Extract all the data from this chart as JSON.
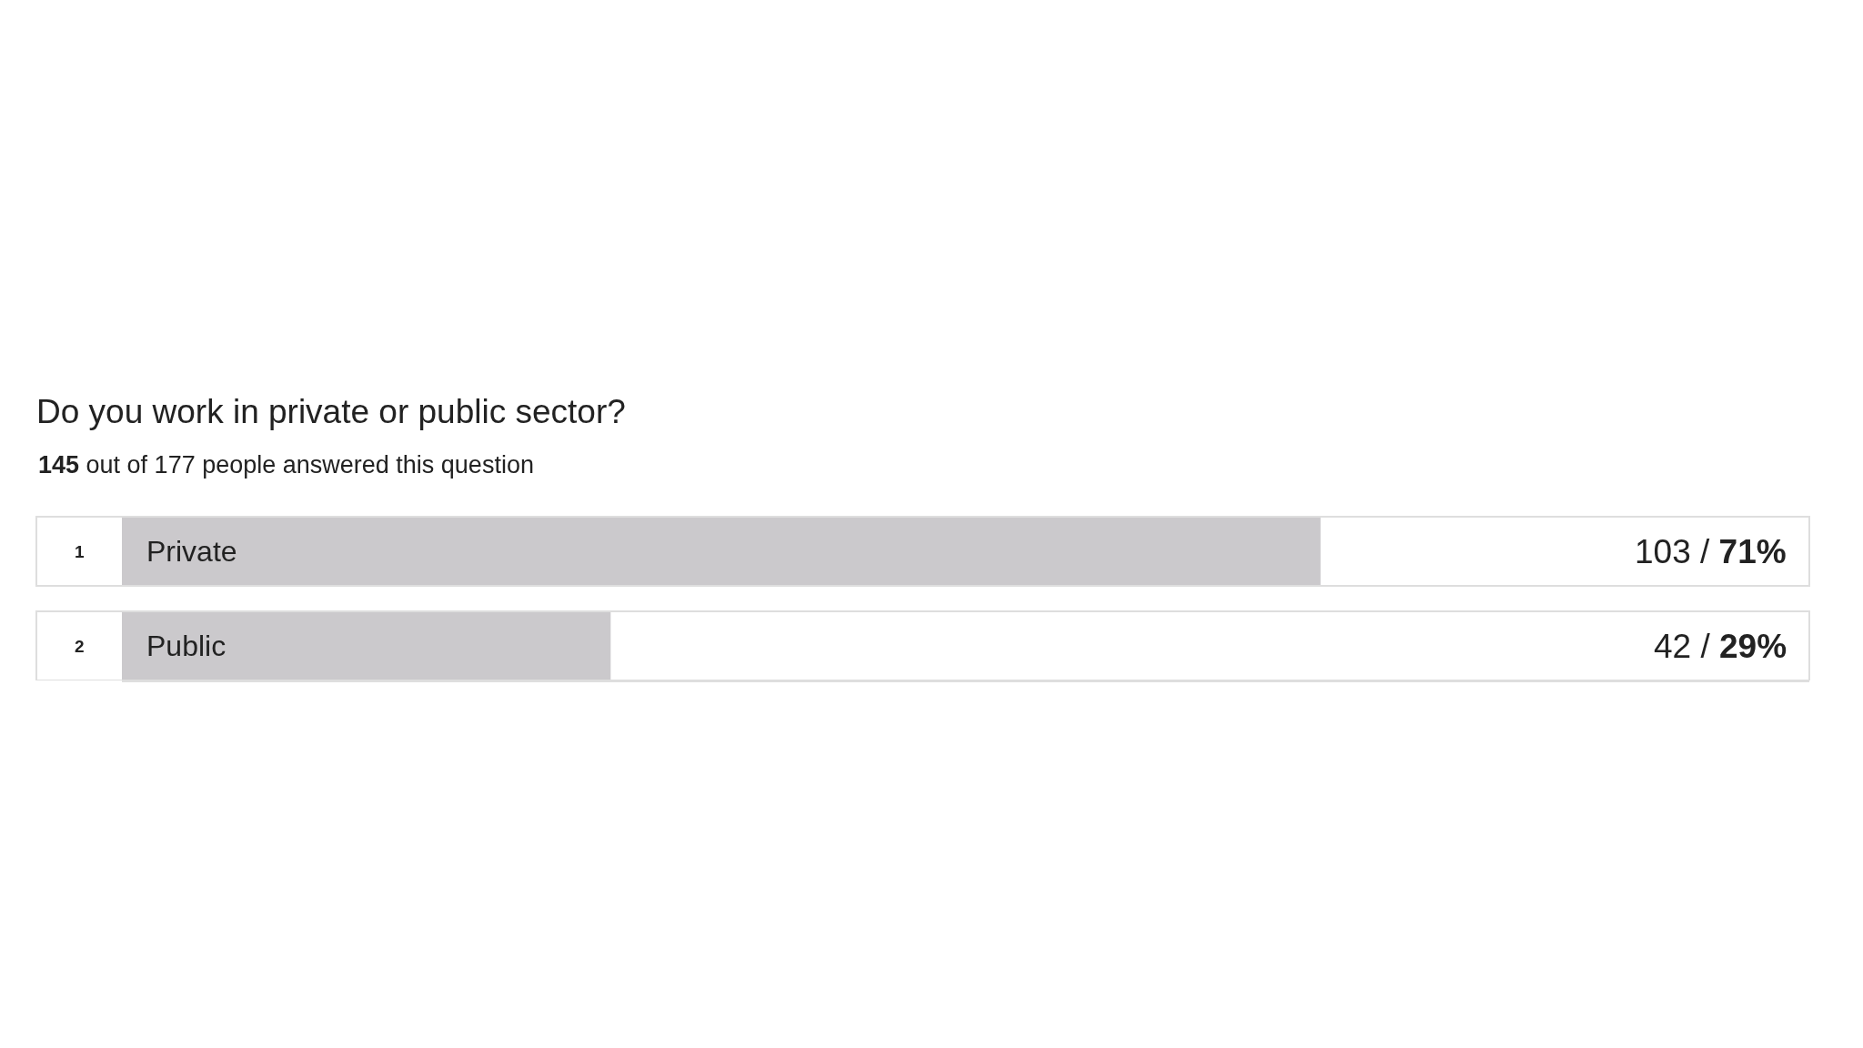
{
  "chart_data": {
    "type": "bar",
    "orientation": "horizontal",
    "title": "Do you work in private or public sector?",
    "subtitle": "145 out of 177 people answered this question",
    "categories": [
      "Private",
      "Public"
    ],
    "values": [
      103,
      42
    ],
    "color": "#cbc9cc",
    "value_labels": [
      "103 / 71%",
      "42 / 29%"
    ],
    "xlim": [
      0,
      145
    ],
    "tick_labels": "y",
    "annotations": [
      "1",
      "2"
    ]
  }
}
